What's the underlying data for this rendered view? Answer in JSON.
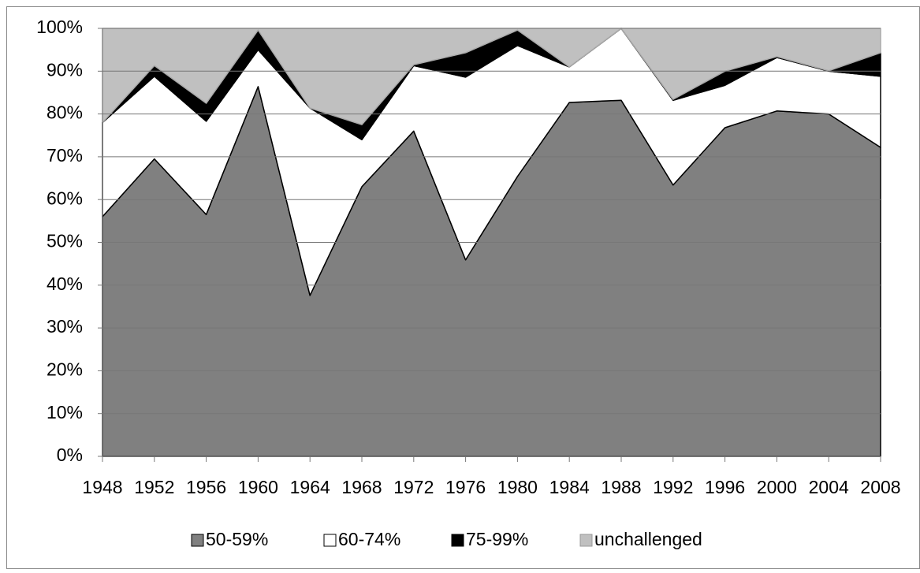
{
  "chart_data": {
    "type": "stacked_area_percent",
    "x": [
      1948,
      1952,
      1956,
      1960,
      1964,
      1968,
      1972,
      1976,
      1980,
      1984,
      1988,
      1992,
      1996,
      2000,
      2004,
      2008
    ],
    "xlim": [
      1948,
      2008
    ],
    "series": [
      {
        "name": "50-59%",
        "color": "#808080",
        "values": [
          56,
          69.5,
          56.5,
          86.4,
          37.6,
          63,
          76,
          45.9,
          65.4,
          82.7,
          83.2,
          63.4,
          76.8,
          80.7,
          80,
          72.2
        ]
      },
      {
        "name": "60-74%",
        "color": "#ffffff",
        "values": [
          22,
          19.3,
          21.8,
          8.6,
          43.8,
          11,
          15.3,
          42.7,
          30.6,
          8.3,
          16.8,
          19.8,
          9.9,
          12.5,
          10,
          16.6
        ]
      },
      {
        "name": "75-99%",
        "color": "#000000",
        "values": [
          0,
          2.5,
          4.2,
          4.6,
          0,
          3.5,
          0.2,
          5.7,
          3.6,
          0,
          0,
          0.2,
          3.3,
          0.2,
          0.1,
          5.5
        ]
      },
      {
        "name": "unchallenged",
        "color": "#c0c0c0",
        "values": [
          22,
          8.7,
          17.5,
          0.4,
          18.6,
          22.5,
          8.5,
          5.7,
          0.4,
          9,
          0,
          16.6,
          10,
          6.6,
          9.9,
          5.7
        ]
      }
    ],
    "ylim": [
      0,
      100
    ],
    "yticks": [
      {
        "value": 0,
        "label": "0%"
      },
      {
        "value": 10,
        "label": "10%"
      },
      {
        "value": 20,
        "label": "20%"
      },
      {
        "value": 30,
        "label": "30%"
      },
      {
        "value": 40,
        "label": "40%"
      },
      {
        "value": 50,
        "label": "50%"
      },
      {
        "value": 60,
        "label": "60%"
      },
      {
        "value": 70,
        "label": "70%"
      },
      {
        "value": 80,
        "label": "80%"
      },
      {
        "value": 90,
        "label": "90%"
      },
      {
        "value": 100,
        "label": "100%"
      }
    ],
    "grid": true,
    "legend": "bottom"
  }
}
